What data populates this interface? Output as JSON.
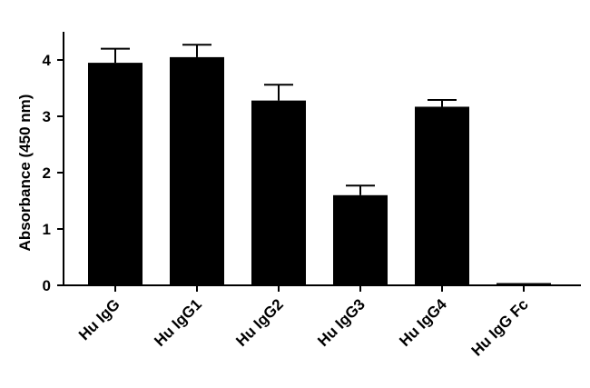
{
  "chart_data": {
    "type": "bar",
    "title": "",
    "xlabel": "",
    "ylabel": "Absorbance (450 nm)",
    "ylim": [
      0,
      4.5
    ],
    "yticks": [
      0,
      1,
      2,
      3,
      4
    ],
    "grid": false,
    "categories": [
      "Hu IgG",
      "Hu IgG1",
      "Hu IgG2",
      "Hu IgG3",
      "Hu IgG4",
      "Hu IgG Fc"
    ],
    "values": [
      3.95,
      4.05,
      3.28,
      1.6,
      3.17,
      0.04
    ],
    "errors": [
      0.25,
      0.22,
      0.28,
      0.17,
      0.12,
      0.0
    ],
    "bar_color": "#000000"
  }
}
